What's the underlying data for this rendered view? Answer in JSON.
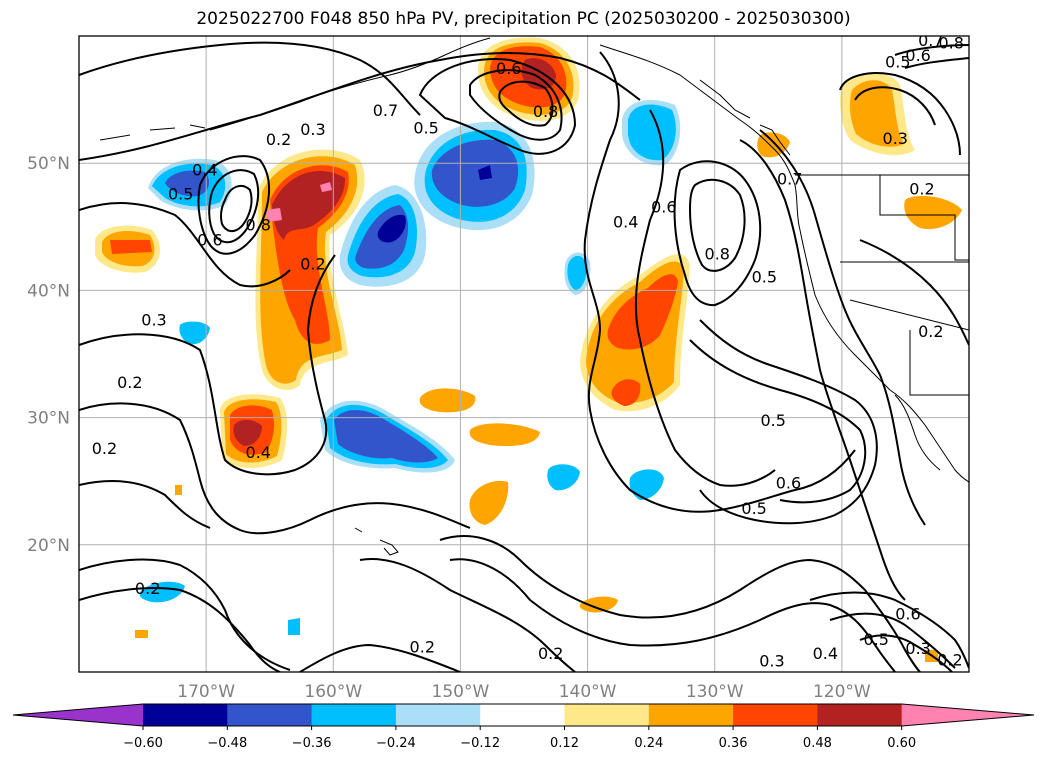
{
  "title": "2025022700 F048 850 hPa PV, precipitation PC (2025030200 - 2025030300)",
  "chart_data": {
    "type": "heatmap",
    "title": "2025022700 F048 850 hPa PV, precipitation PC (2025030200 - 2025030300)",
    "projection": "plate-carree",
    "lon_range": [
      -180,
      -110
    ],
    "lat_range": [
      10,
      60
    ],
    "lat_ticks": [
      {
        "value": 20,
        "label": "20°N"
      },
      {
        "value": 30,
        "label": "30°N"
      },
      {
        "value": 40,
        "label": "40°N"
      },
      {
        "value": 50,
        "label": "50°N"
      }
    ],
    "lon_ticks": [
      {
        "value": -170,
        "label": "170°W"
      },
      {
        "value": -160,
        "label": "160°W"
      },
      {
        "value": -150,
        "label": "150°W"
      },
      {
        "value": -140,
        "label": "140°W"
      },
      {
        "value": -130,
        "label": "130°W"
      },
      {
        "value": -120,
        "label": "120°W"
      }
    ],
    "grid": true,
    "colorbar": {
      "orientation": "horizontal",
      "extend": "both",
      "ticks": [
        "−0.60",
        "−0.48",
        "−0.36",
        "−0.24",
        "−0.12",
        "0.12",
        "0.24",
        "0.36",
        "0.48",
        "0.60"
      ],
      "colors": [
        "#9933cc",
        "#000099",
        "#3355cc",
        "#00bfff",
        "#aadff7",
        "#ffffff",
        "#ffe88a",
        "#ffa500",
        "#ff4500",
        "#b22222",
        "#ff82b0"
      ]
    },
    "pv_contour_labels": [
      {
        "text": "0.6",
        "lon": -146.2,
        "lat": 57.5
      },
      {
        "text": "0.8",
        "lon": -143.3,
        "lat": 54.1
      },
      {
        "text": "0.7",
        "lon": -155.9,
        "lat": 54.2
      },
      {
        "text": "0.5",
        "lon": -152.7,
        "lat": 52.8
      },
      {
        "text": "0.3",
        "lon": -161.6,
        "lat": 52.7
      },
      {
        "text": "0.2",
        "lon": -164.3,
        "lat": 51.9
      },
      {
        "text": "0.4",
        "lon": -170.1,
        "lat": 49.5
      },
      {
        "text": "0.5",
        "lon": -172.0,
        "lat": 47.6
      },
      {
        "text": "0.8",
        "lon": -165.9,
        "lat": 45.2
      },
      {
        "text": "0.6",
        "lon": -169.7,
        "lat": 44.0
      },
      {
        "text": "0.2",
        "lon": -161.6,
        "lat": 42.1
      },
      {
        "text": "0.3",
        "lon": -174.1,
        "lat": 37.7
      },
      {
        "text": "0.2",
        "lon": -176.0,
        "lat": 32.8
      },
      {
        "text": "0.4",
        "lon": -165.9,
        "lat": 27.3
      },
      {
        "text": "0.2",
        "lon": -178.0,
        "lat": 27.6
      },
      {
        "text": "0.2",
        "lon": -174.6,
        "lat": 16.6
      },
      {
        "text": "0.2",
        "lon": -153.0,
        "lat": 12.0
      },
      {
        "text": "0.2",
        "lon": -142.9,
        "lat": 11.5
      },
      {
        "text": "0.4",
        "lon": -137.0,
        "lat": 45.4
      },
      {
        "text": "0.6",
        "lon": -134.0,
        "lat": 46.6
      },
      {
        "text": "0.8",
        "lon": -129.8,
        "lat": 42.9
      },
      {
        "text": "0.7",
        "lon": -124.1,
        "lat": 48.8
      },
      {
        "text": "0.5",
        "lon": -126.1,
        "lat": 41.1
      },
      {
        "text": "0.5",
        "lon": -125.4,
        "lat": 29.8
      },
      {
        "text": "0.6",
        "lon": -124.2,
        "lat": 24.9
      },
      {
        "text": "0.5",
        "lon": -126.9,
        "lat": 22.9
      },
      {
        "text": "0.3",
        "lon": -125.5,
        "lat": 10.9
      },
      {
        "text": "0.4",
        "lon": -121.3,
        "lat": 11.5
      },
      {
        "text": "0.5",
        "lon": -117.3,
        "lat": 12.6
      },
      {
        "text": "0.6",
        "lon": -114.8,
        "lat": 14.6
      },
      {
        "text": "0.3",
        "lon": -114.0,
        "lat": 11.9
      },
      {
        "text": "0.2",
        "lon": -111.5,
        "lat": 11.0
      },
      {
        "text": "0.2",
        "lon": -113.0,
        "lat": 36.8
      },
      {
        "text": "0.3",
        "lon": -115.8,
        "lat": 52.0
      },
      {
        "text": "0.2",
        "lon": -113.7,
        "lat": 48.0
      },
      {
        "text": "0.5",
        "lon": -115.6,
        "lat": 58.0
      },
      {
        "text": "0.6",
        "lon": -114.0,
        "lat": 58.5
      },
      {
        "text": "0.7",
        "lon": -113.0,
        "lat": 59.7
      },
      {
        "text": "0.8",
        "lon": -111.4,
        "lat": 59.5
      }
    ]
  }
}
